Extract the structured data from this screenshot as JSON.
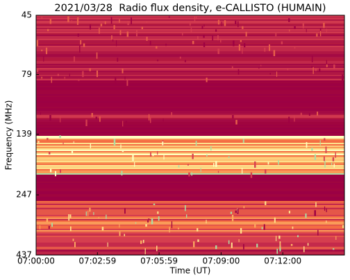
{
  "chart_data": {
    "type": "spectrogram",
    "title": "2021/03/28  Radio flux density, e-CALLISTO (HUMAIN)",
    "xlabel": "Time (UT)",
    "ylabel": "Frequency (MHz)",
    "xlim": [
      0,
      900
    ],
    "xticks": [
      {
        "value": 0,
        "label": "07:00:00"
      },
      {
        "value": 179,
        "label": "07:02:59"
      },
      {
        "value": 359,
        "label": "07:05:59"
      },
      {
        "value": 540,
        "label": "07:09:00"
      },
      {
        "value": 720,
        "label": "07:12:00"
      }
    ],
    "ylim": [
      45,
      437
    ],
    "yscale": "log",
    "yinverted": true,
    "yticks": [
      45,
      79,
      139,
      247,
      437
    ]
  }
}
